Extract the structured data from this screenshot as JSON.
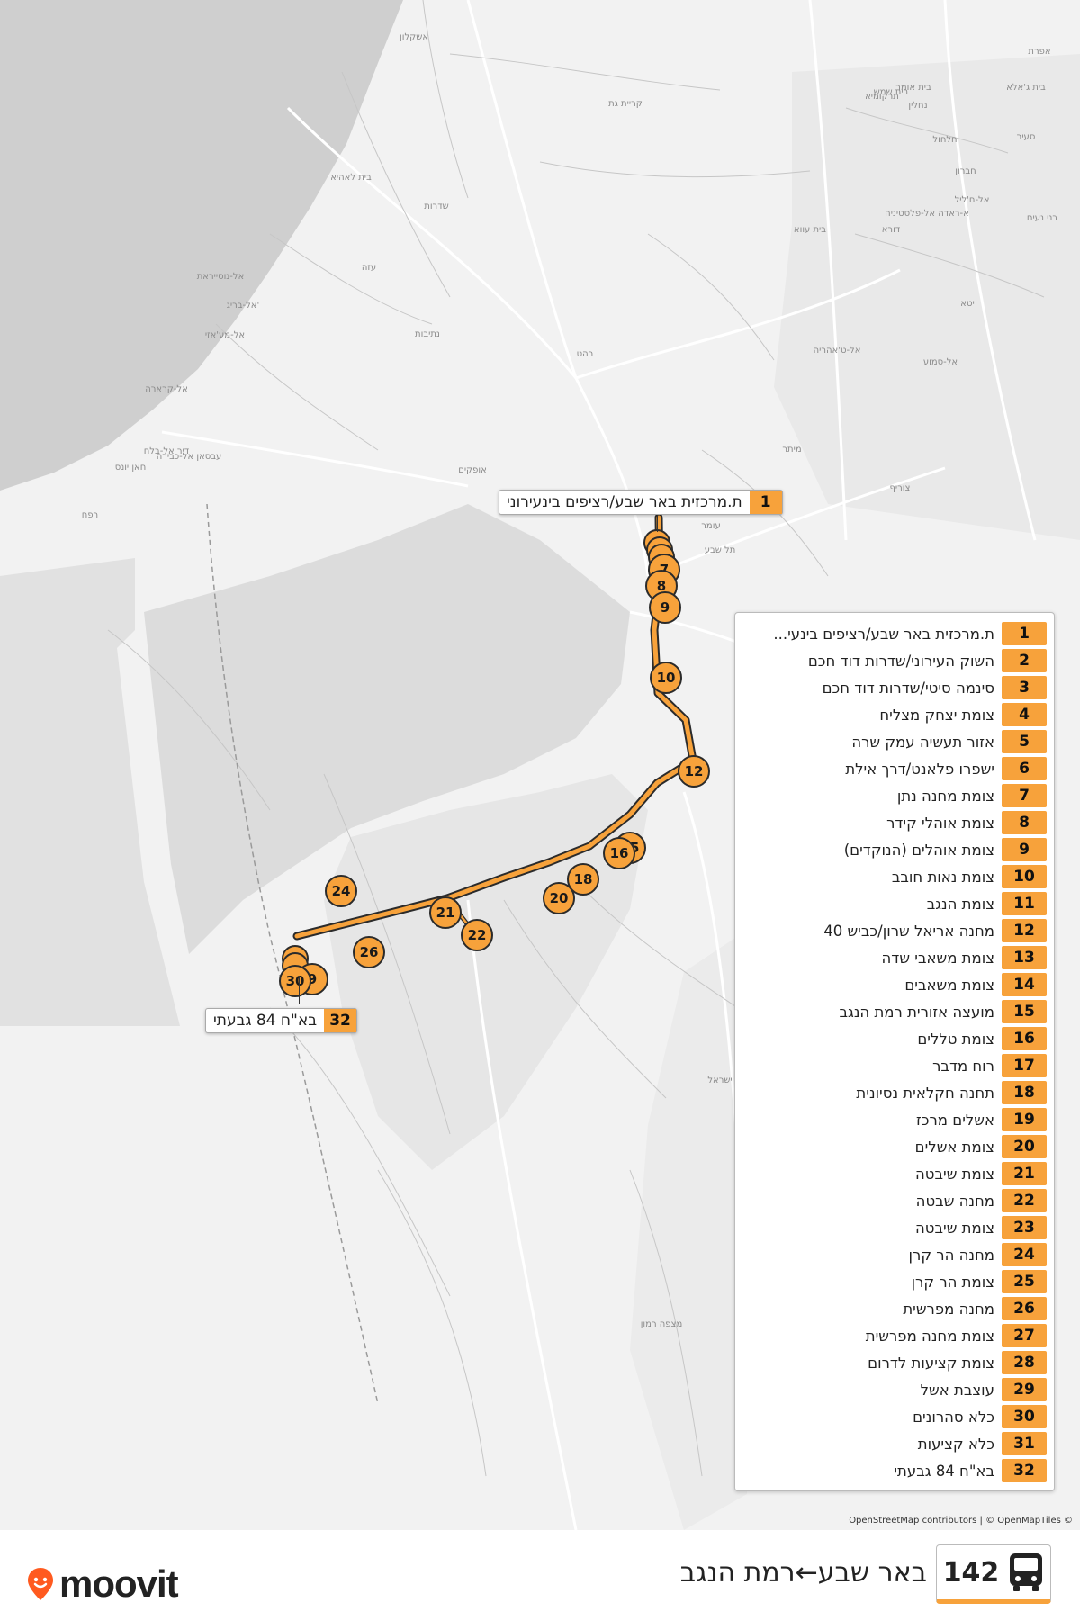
{
  "app": {
    "brand": "moovit",
    "attribution": "OpenStreetMap contributors | © OpenMapTiles ©"
  },
  "route": {
    "number": "142",
    "name": "באר שבע←רמת הנגב",
    "mode_icon": "bus-icon"
  },
  "colors": {
    "accent": "#f7a23b",
    "route_line": "#f7a23b",
    "sea": "#cfcfcf",
    "land": "#f2f2f2",
    "area_fill": "#dcdcdc",
    "brand_pin": "#ff5a1f"
  },
  "map_places": [
    "אשקלון",
    "קריית גת",
    "בית שמש",
    "שדרות",
    "נתיבות",
    "אופקים",
    "רהט",
    "עומר",
    "תל שבע",
    "ישראל",
    "מצפה רמון",
    "אפרת",
    "בית ג'אלא",
    "חברון",
    "יטא",
    "עזה",
    "רפח",
    "חאן יונס",
    "דיר אל-בלח",
    "אל-קרארה",
    "אל-מע'אזי",
    "אל-בריג'",
    "אל-נוסייראת",
    "עבסאן אל-כבירה",
    "בית לאהיא",
    "חלחול",
    "דורא",
    "בני נעים",
    "אל-סמוע",
    "אל-ט'אהריה",
    "מיתר",
    "צוריף",
    "אל-ח'ליל",
    "נחלין",
    "סעיר",
    "בית אומר",
    "תרקומיא",
    "בית עווא",
    "א-ראדה אל-פלסטיניה"
  ],
  "map_callouts": {
    "first": {
      "number": "1",
      "label": "ת.מרכזית באר שבע/רציפים בינעירוני"
    },
    "last": {
      "number": "32",
      "label": "בא\"ח 84 גבעתי"
    }
  },
  "map_markers": [
    "7",
    "8",
    "9",
    "10",
    "12",
    "15",
    "16",
    "18",
    "20",
    "21",
    "22",
    "24",
    "26",
    "9",
    "30"
  ],
  "stops": [
    {
      "number": "1",
      "name": "ת.מרכזית באר שבע/רציפים בינעי..."
    },
    {
      "number": "2",
      "name": "השוק העירוני/שדרות דוד חכם"
    },
    {
      "number": "3",
      "name": "סינמה סיטי/שדרות דוד חכם"
    },
    {
      "number": "4",
      "name": "צומת יצחק מצליח"
    },
    {
      "number": "5",
      "name": "אזור תעשיה עמק שרה"
    },
    {
      "number": "6",
      "name": "ישפרו פלאנט/דרך אילת"
    },
    {
      "number": "7",
      "name": "צומת מחנה נתן"
    },
    {
      "number": "8",
      "name": "צומת אוהלי קידר"
    },
    {
      "number": "9",
      "name": "צומת אוהלים (הנוקדים)"
    },
    {
      "number": "10",
      "name": "צומת נאות חובב"
    },
    {
      "number": "11",
      "name": "צומת הנגב"
    },
    {
      "number": "12",
      "name": "מחנה אריאל שרון/כביש 40"
    },
    {
      "number": "13",
      "name": "צומת משאבי שדה"
    },
    {
      "number": "14",
      "name": "צומת משאבים"
    },
    {
      "number": "15",
      "name": "מועצה אזורית רמת הנגב"
    },
    {
      "number": "16",
      "name": "צומת טללים"
    },
    {
      "number": "17",
      "name": "רוח מדבר"
    },
    {
      "number": "18",
      "name": "תחנה חקלאית נסיונית"
    },
    {
      "number": "19",
      "name": "אשלים מרכז"
    },
    {
      "number": "20",
      "name": "צומת אשלים"
    },
    {
      "number": "21",
      "name": "צומת שיבטה"
    },
    {
      "number": "22",
      "name": "מחנה שבטה"
    },
    {
      "number": "23",
      "name": "צומת שיבטה"
    },
    {
      "number": "24",
      "name": "מחנה הר קרן"
    },
    {
      "number": "25",
      "name": "צומת הר קרן"
    },
    {
      "number": "26",
      "name": "מחנה מפרשית"
    },
    {
      "number": "27",
      "name": "צומת מחנה מפרשית"
    },
    {
      "number": "28",
      "name": "צומת קציעות לדרום"
    },
    {
      "number": "29",
      "name": "עוצבת אשל"
    },
    {
      "number": "30",
      "name": "כלא סהרונים"
    },
    {
      "number": "31",
      "name": "כלא קציעות"
    },
    {
      "number": "32",
      "name": "בא\"ח 84 גבעתי"
    }
  ]
}
